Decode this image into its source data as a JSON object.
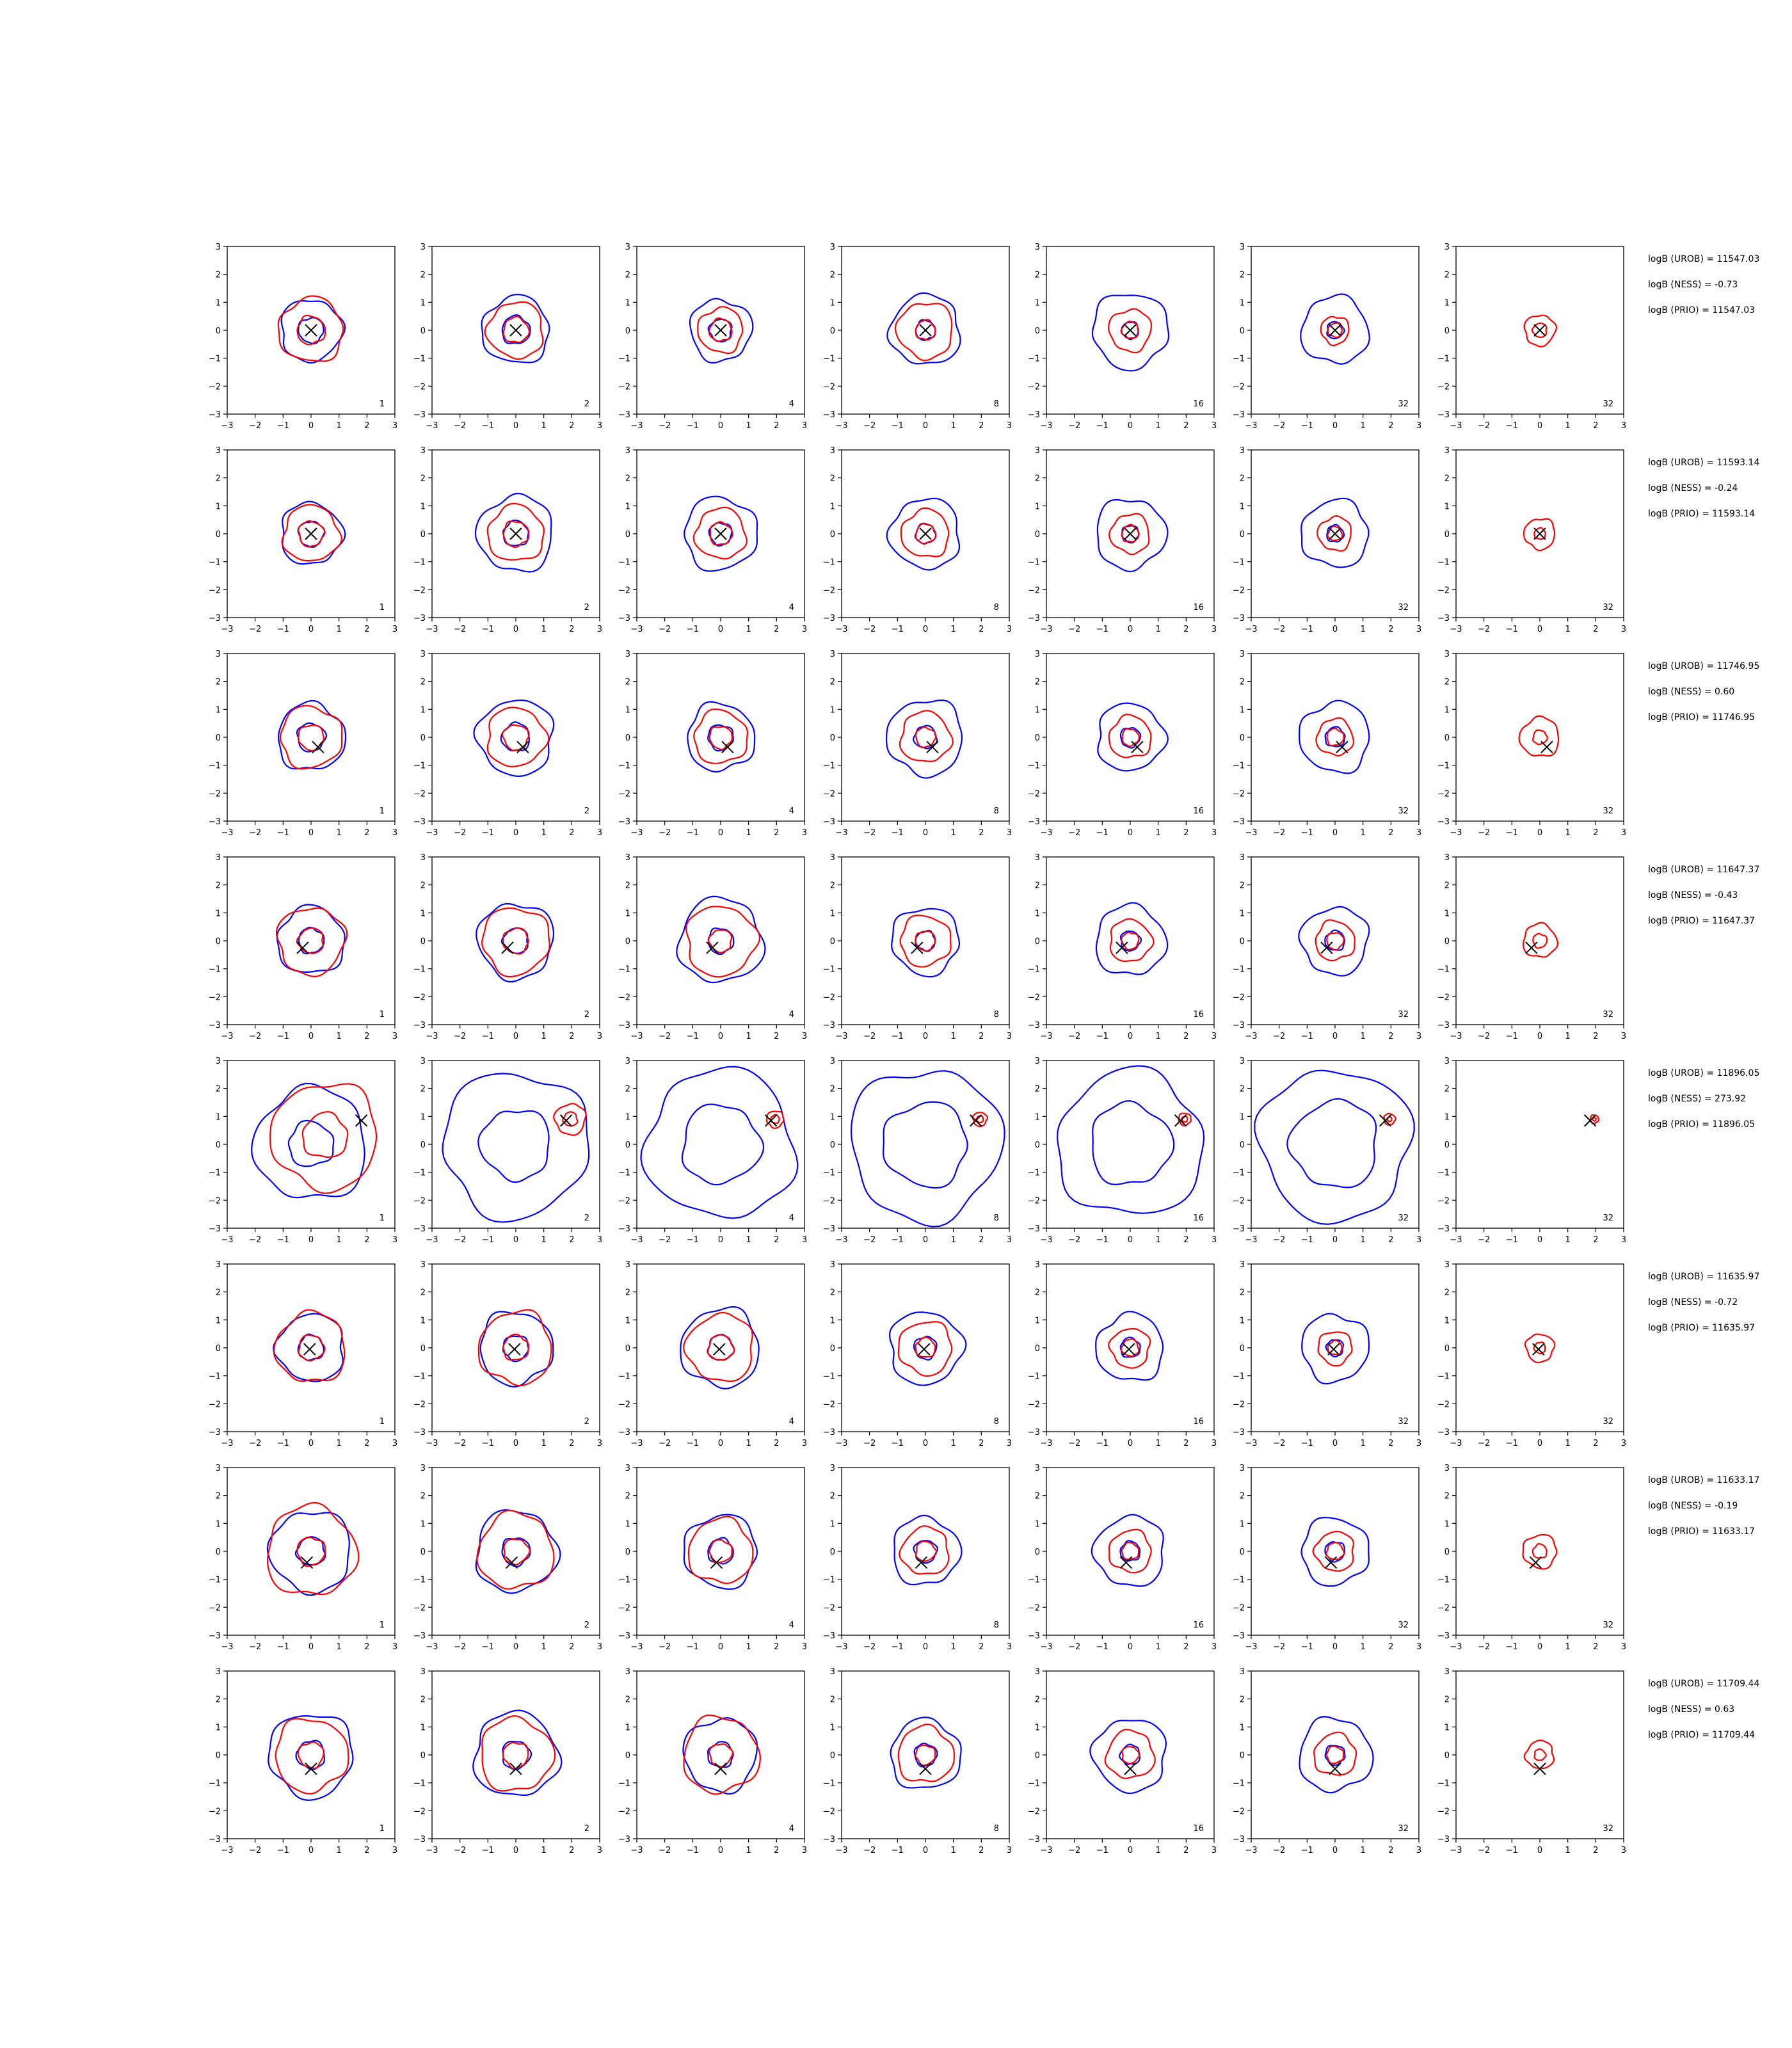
{
  "chart_data": {
    "type": "contour_grid",
    "title": "",
    "xlabel": "",
    "ylabel": "",
    "xlim": [
      -3,
      3
    ],
    "ylim": [
      -3,
      3
    ],
    "ticks": [
      -3,
      -2,
      -1,
      0,
      1,
      2,
      3
    ],
    "tick_labels": [
      "−3",
      "−2",
      "−1",
      "0",
      "1",
      "2",
      "3"
    ],
    "grid": false,
    "legend": "none",
    "colors": {
      "blue": "#0000ff",
      "red": "#ff0000",
      "marker": "#000000"
    },
    "rows": [
      {
        "annotations": [
          "logB (UROB) = 11547.03",
          "logB (NESS) = -0.73",
          "logB (PRIO) = 11547.03"
        ],
        "marker": [
          0.0,
          0.0
        ],
        "panels": [
          {
            "label": "1",
            "blue": [
              1.1,
              0.45
            ],
            "red": [
              1.15,
              0.5
            ]
          },
          {
            "label": "2",
            "blue": [
              1.2,
              0.5
            ],
            "red": [
              1.0,
              0.45
            ]
          },
          {
            "label": "4",
            "blue": [
              1.1,
              0.4
            ],
            "red": [
              0.8,
              0.4
            ]
          },
          {
            "label": "8",
            "blue": [
              1.25,
              0.35
            ],
            "red": [
              1.0,
              0.35
            ]
          },
          {
            "label": "16",
            "blue": [
              1.35,
              0.3
            ],
            "red": [
              0.75,
              0.3
            ]
          },
          {
            "label": "32",
            "blue": [
              1.2,
              0.3
            ],
            "red": [
              0.5,
              0.25
            ]
          },
          {
            "label": "32",
            "blue": [],
            "red": [
              0.55,
              0.25
            ]
          }
        ]
      },
      {
        "annotations": [
          "logB (UROB) = 11593.14",
          "logB (NESS) = -0.24",
          "logB (PRIO) = 11593.14"
        ],
        "marker": [
          0.0,
          0.0
        ],
        "panels": [
          {
            "label": "1",
            "blue": [
              1.1,
              0.45
            ],
            "red": [
              1.0,
              0.45
            ]
          },
          {
            "label": "2",
            "blue": [
              1.35,
              0.45
            ],
            "red": [
              1.0,
              0.45
            ]
          },
          {
            "label": "4",
            "blue": [
              1.3,
              0.4
            ],
            "red": [
              0.9,
              0.4
            ]
          },
          {
            "label": "8",
            "blue": [
              1.25,
              0.35
            ],
            "red": [
              0.85,
              0.35
            ]
          },
          {
            "label": "16",
            "blue": [
              1.25,
              0.3
            ],
            "red": [
              0.7,
              0.3
            ]
          },
          {
            "label": "32",
            "blue": [
              1.2,
              0.3
            ],
            "red": [
              0.6,
              0.25
            ]
          },
          {
            "label": "32",
            "blue": [],
            "red": [
              0.55,
              0.2
            ]
          }
        ]
      },
      {
        "annotations": [
          "logB (UROB) = 11746.95",
          "logB (NESS) = 0.60",
          "logB (PRIO) = 11746.95"
        ],
        "marker": [
          0.25,
          -0.35
        ],
        "panels": [
          {
            "label": "1",
            "blue": [
              1.2,
              0.5
            ],
            "red": [
              1.1,
              0.45
            ]
          },
          {
            "label": "2",
            "blue": [
              1.35,
              0.5
            ],
            "red": [
              1.05,
              0.45
            ]
          },
          {
            "label": "4",
            "blue": [
              1.2,
              0.45
            ],
            "red": [
              0.95,
              0.4
            ]
          },
          {
            "label": "8",
            "blue": [
              1.35,
              0.4
            ],
            "red": [
              0.9,
              0.35
            ]
          },
          {
            "label": "16",
            "blue": [
              1.2,
              0.35
            ],
            "red": [
              0.75,
              0.3
            ]
          },
          {
            "label": "32",
            "blue": [
              1.25,
              0.35
            ],
            "red": [
              0.65,
              0.3
            ]
          },
          {
            "label": "32",
            "blue": [],
            "red": [
              0.7,
              0.25
            ]
          }
        ]
      },
      {
        "annotations": [
          "logB (UROB) = 11647.37",
          "logB (NESS) = -0.43",
          "logB (PRIO) = 11647.37"
        ],
        "marker": [
          -0.3,
          -0.25
        ],
        "panels": [
          {
            "label": "1",
            "blue": [
              1.2,
              0.45
            ],
            "red": [
              1.2,
              0.45
            ]
          },
          {
            "label": "2",
            "blue": [
              1.35,
              0.45
            ],
            "red": [
              1.2,
              0.45
            ]
          },
          {
            "label": "4",
            "blue": [
              1.5,
              0.45
            ],
            "red": [
              1.25,
              0.4
            ]
          },
          {
            "label": "8",
            "blue": [
              1.2,
              0.35
            ],
            "red": [
              0.9,
              0.35
            ]
          },
          {
            "label": "16",
            "blue": [
              1.25,
              0.35
            ],
            "red": [
              0.75,
              0.3
            ]
          },
          {
            "label": "32",
            "blue": [
              1.2,
              0.35
            ],
            "red": [
              0.7,
              0.3
            ]
          },
          {
            "label": "32",
            "blue": [],
            "red": [
              0.6,
              0.25
            ]
          }
        ]
      },
      {
        "annotations": [
          "logB (UROB) = 11896.05",
          "logB (NESS) = 273.92",
          "logB (PRIO) = 11896.05"
        ],
        "marker": [
          1.8,
          0.85
        ],
        "panels": [
          {
            "label": "1",
            "blue": [
              2.0,
              0.8
            ],
            "red": [
              1.9,
              0.8
            ]
          },
          {
            "label": "2",
            "blue": [
              2.6,
              1.25
            ],
            "red": [
              0.55,
              0.25
            ]
          },
          {
            "label": "4",
            "blue": [
              2.65,
              1.4
            ],
            "red": [
              0.3,
              0.15
            ]
          },
          {
            "label": "8",
            "blue": [
              2.7,
              1.5
            ],
            "red": [
              0.25,
              0.12
            ]
          },
          {
            "label": "16",
            "blue": [
              2.6,
              1.45
            ],
            "red": [
              0.22,
              0.1
            ]
          },
          {
            "label": "32",
            "blue": [
              2.7,
              1.55
            ],
            "red": [
              0.2,
              0.08
            ]
          },
          {
            "label": "32",
            "blue": [],
            "red": [
              0.15,
              0.06
            ]
          }
        ]
      },
      {
        "annotations": [
          "logB (UROB) = 11635.97",
          "logB (NESS) = -0.72",
          "logB (PRIO) = 11635.97"
        ],
        "marker": [
          -0.05,
          -0.05
        ],
        "panels": [
          {
            "label": "1",
            "blue": [
              1.2,
              0.45
            ],
            "red": [
              1.25,
              0.45
            ]
          },
          {
            "label": "2",
            "blue": [
              1.3,
              0.45
            ],
            "red": [
              1.3,
              0.45
            ]
          },
          {
            "label": "4",
            "blue": [
              1.4,
              0.45
            ],
            "red": [
              1.2,
              0.45
            ]
          },
          {
            "label": "8",
            "blue": [
              1.3,
              0.4
            ],
            "red": [
              0.95,
              0.35
            ]
          },
          {
            "label": "16",
            "blue": [
              1.2,
              0.35
            ],
            "red": [
              0.7,
              0.3
            ]
          },
          {
            "label": "32",
            "blue": [
              1.2,
              0.3
            ],
            "red": [
              0.6,
              0.25
            ]
          },
          {
            "label": "32",
            "blue": [],
            "red": [
              0.5,
              0.2
            ]
          }
        ]
      },
      {
        "annotations": [
          "logB (UROB) = 11633.17",
          "logB (NESS) = -0.19",
          "logB (PRIO) = 11633.17"
        ],
        "marker": [
          -0.15,
          -0.4
        ],
        "panels": [
          {
            "label": "1",
            "blue": [
              1.45,
              0.5
            ],
            "red": [
              1.6,
              0.5
            ]
          },
          {
            "label": "2",
            "blue": [
              1.45,
              0.5
            ],
            "red": [
              1.35,
              0.45
            ]
          },
          {
            "label": "4",
            "blue": [
              1.3,
              0.45
            ],
            "red": [
              1.15,
              0.4
            ]
          },
          {
            "label": "8",
            "blue": [
              1.2,
              0.4
            ],
            "red": [
              0.85,
              0.35
            ]
          },
          {
            "label": "16",
            "blue": [
              1.25,
              0.35
            ],
            "red": [
              0.75,
              0.3
            ]
          },
          {
            "label": "32",
            "blue": [
              1.2,
              0.35
            ],
            "red": [
              0.7,
              0.3
            ]
          },
          {
            "label": "32",
            "blue": [],
            "red": [
              0.6,
              0.25
            ]
          }
        ]
      },
      {
        "annotations": [
          "logB (UROB) = 11709.44",
          "logB (NESS) = 0.63",
          "logB (PRIO) = 11709.44"
        ],
        "marker": [
          0.0,
          -0.5
        ],
        "panels": [
          {
            "label": "1",
            "blue": [
              1.5,
              0.5
            ],
            "red": [
              1.3,
              0.45
            ]
          },
          {
            "label": "2",
            "blue": [
              1.5,
              0.5
            ],
            "red": [
              1.3,
              0.45
            ]
          },
          {
            "label": "4",
            "blue": [
              1.3,
              0.45
            ],
            "red": [
              1.35,
              0.4
            ]
          },
          {
            "label": "8",
            "blue": [
              1.25,
              0.4
            ],
            "red": [
              1.0,
              0.35
            ]
          },
          {
            "label": "16",
            "blue": [
              1.3,
              0.35
            ],
            "red": [
              0.85,
              0.3
            ]
          },
          {
            "label": "32",
            "blue": [
              1.3,
              0.35
            ],
            "red": [
              0.75,
              0.3
            ]
          },
          {
            "label": "32",
            "blue": [],
            "red": [
              0.5,
              0.2
            ]
          }
        ]
      }
    ]
  }
}
